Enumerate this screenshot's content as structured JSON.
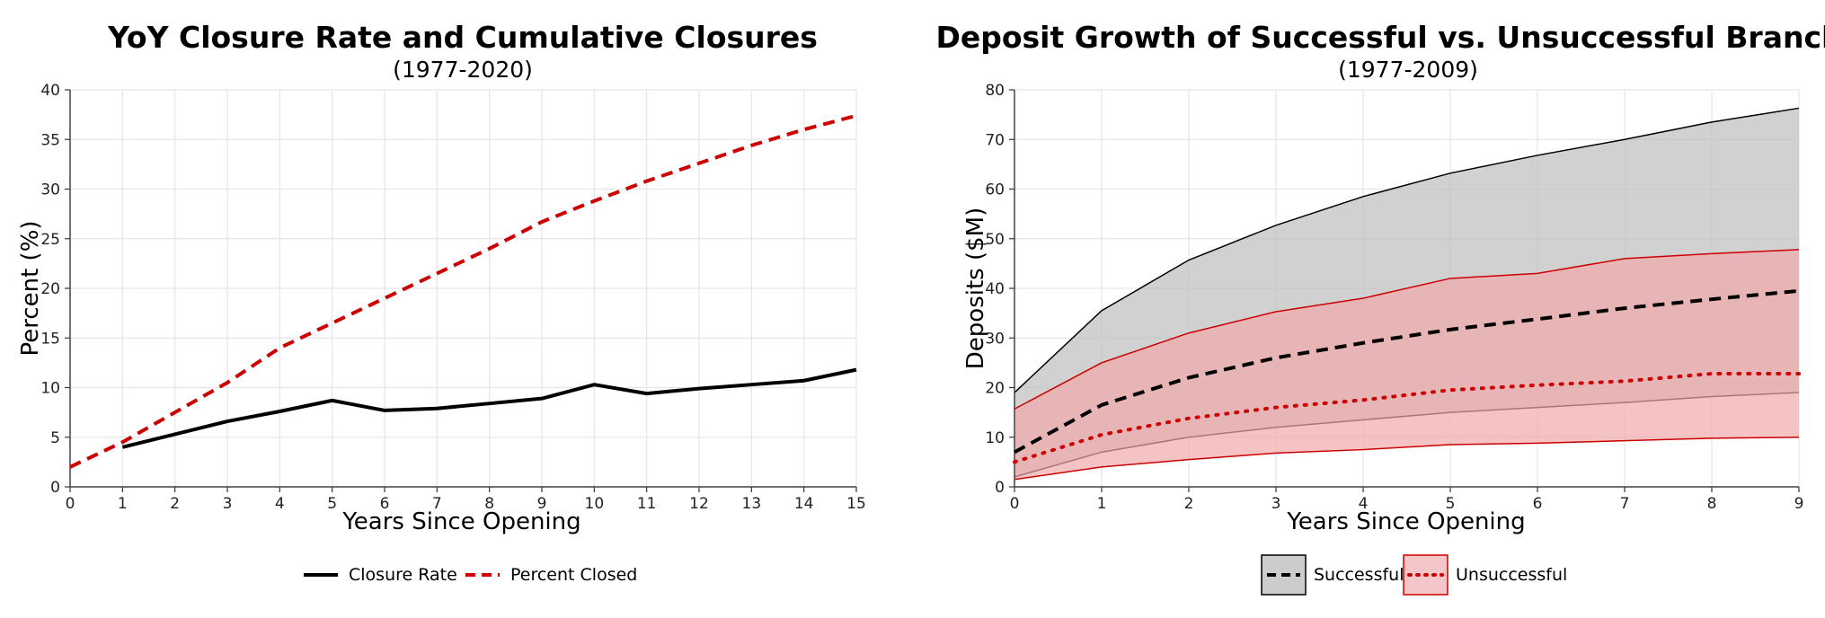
{
  "chart_data": [
    {
      "type": "line",
      "title": "YoY Closure Rate and Cumulative Closures",
      "subtitle": "(1977-2020)",
      "xlabel": "Years Since Opening",
      "ylabel": "Percent (%)",
      "xlim": [
        0,
        15
      ],
      "ylim": [
        0,
        40
      ],
      "xticks": [
        "0",
        "1",
        "2",
        "3",
        "4",
        "5",
        "6",
        "7",
        "8",
        "9",
        "10",
        "11",
        "12",
        "13",
        "14",
        "15"
      ],
      "yticks": [
        "0",
        "5",
        "10",
        "15",
        "20",
        "25",
        "30",
        "35",
        "40"
      ],
      "grid": true,
      "legend_position": "bottom",
      "series": [
        {
          "name": "Closure Rate",
          "color": "#000000",
          "style": "solid",
          "x": [
            1,
            2,
            3,
            4,
            5,
            6,
            7,
            8,
            9,
            10,
            11,
            12,
            13,
            14,
            15
          ],
          "values": [
            4.0,
            5.3,
            6.6,
            7.6,
            8.7,
            7.7,
            7.9,
            8.4,
            8.9,
            10.3,
            9.4,
            9.9,
            10.3,
            10.7,
            11.8
          ]
        },
        {
          "name": "Percent Closed",
          "color": "#cc0000",
          "style": "dashed",
          "x": [
            0,
            1,
            2,
            3,
            4,
            5,
            6,
            7,
            8,
            9,
            10,
            11,
            12,
            13,
            14,
            15
          ],
          "values": [
            2.0,
            4.5,
            7.5,
            10.5,
            14.0,
            16.5,
            19.0,
            21.5,
            24.0,
            26.7,
            28.8,
            30.8,
            32.6,
            34.4,
            36.0,
            37.4
          ]
        }
      ]
    },
    {
      "type": "area",
      "title": "Deposit Growth of Successful vs. Unsuccessful Branches",
      "subtitle": "(1977-2009)",
      "xlabel": "Years Since Opening",
      "ylabel": "Deposits ($M)",
      "xlim": [
        0,
        9
      ],
      "ylim": [
        0,
        80
      ],
      "xticks": [
        "0",
        "1",
        "2",
        "3",
        "4",
        "5",
        "6",
        "7",
        "8",
        "9"
      ],
      "yticks": [
        "0",
        "10",
        "20",
        "30",
        "40",
        "50",
        "60",
        "70",
        "80"
      ],
      "grid": true,
      "legend_position": "bottom",
      "x": [
        0,
        1,
        2,
        3,
        4,
        5,
        6,
        7,
        8,
        9
      ],
      "series": [
        {
          "name": "Successful",
          "color": "#000000",
          "style": "dashed",
          "band_fill": "#bdbdbd",
          "values": [
            7.0,
            16.5,
            22.0,
            26.0,
            29.0,
            31.7,
            33.8,
            36.0,
            37.8,
            39.5
          ],
          "upper": [
            19.0,
            35.5,
            45.7,
            52.7,
            58.5,
            63.2,
            66.8,
            70.0,
            73.5,
            76.3
          ],
          "lower": [
            2.0,
            7.0,
            10.0,
            12.0,
            13.5,
            15.0,
            16.0,
            17.0,
            18.2,
            19.0
          ]
        },
        {
          "name": "Unsuccessful",
          "color": "#cc0000",
          "style": "dotted",
          "band_fill": "#f2a9ad",
          "values": [
            5.0,
            10.5,
            13.8,
            16.0,
            17.5,
            19.5,
            20.5,
            21.3,
            22.8,
            22.8
          ],
          "upper": [
            15.7,
            25.0,
            31.0,
            35.3,
            38.0,
            42.0,
            43.0,
            46.0,
            47.0,
            47.8
          ],
          "lower": [
            1.5,
            4.0,
            5.5,
            6.8,
            7.5,
            8.5,
            8.8,
            9.3,
            9.8,
            10.0
          ]
        }
      ]
    }
  ]
}
